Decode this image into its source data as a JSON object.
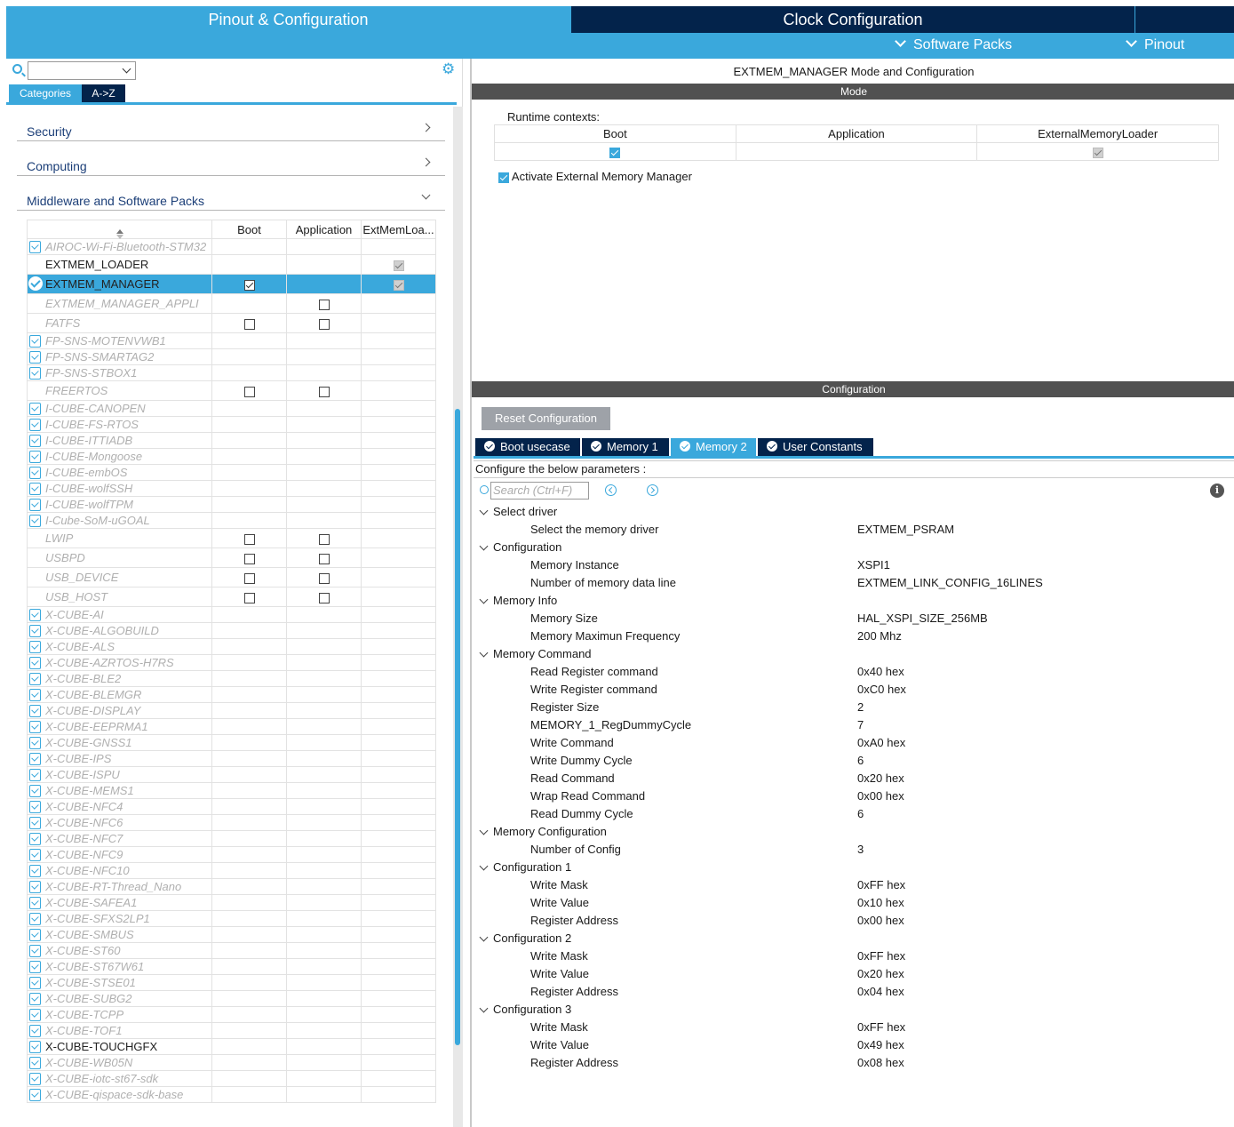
{
  "header": {
    "tab_pinout": "Pinout & Configuration",
    "tab_clock": "Clock Configuration",
    "menu_software_packs": "Software Packs",
    "menu_pinout": "Pinout"
  },
  "left": {
    "tab_categories": "Categories",
    "tab_az": "A->Z",
    "sections": [
      "Security",
      "Computing",
      "Middleware and Software Packs"
    ],
    "columns": [
      "Boot",
      "Application",
      "ExtMemLoa..."
    ],
    "rows": [
      {
        "name": "AIROC-Wi-Fi-Bluetooth-STM32",
        "icon": "download",
        "state": "disabled",
        "boot": "",
        "app": "",
        "ext": ""
      },
      {
        "name": "EXTMEM_LOADER",
        "icon": "",
        "state": "enabled",
        "boot": "",
        "app": "",
        "ext": "grey"
      },
      {
        "name": "EXTMEM_MANAGER",
        "icon": "ok",
        "state": "selected",
        "boot": "on",
        "app": "",
        "ext": "grey"
      },
      {
        "name": "EXTMEM_MANAGER_APPLI",
        "icon": "",
        "state": "disabled",
        "boot": "",
        "app": "off",
        "ext": ""
      },
      {
        "name": "FATFS",
        "icon": "",
        "state": "disabled",
        "boot": "off",
        "app": "off",
        "ext": ""
      },
      {
        "name": "FP-SNS-MOTENVWB1",
        "icon": "download",
        "state": "disabled",
        "boot": "",
        "app": "",
        "ext": ""
      },
      {
        "name": "FP-SNS-SMARTAG2",
        "icon": "download",
        "state": "disabled",
        "boot": "",
        "app": "",
        "ext": ""
      },
      {
        "name": "FP-SNS-STBOX1",
        "icon": "download",
        "state": "disabled",
        "boot": "",
        "app": "",
        "ext": ""
      },
      {
        "name": "FREERTOS",
        "icon": "",
        "state": "disabled",
        "boot": "off",
        "app": "off",
        "ext": ""
      },
      {
        "name": "I-CUBE-CANOPEN",
        "icon": "download",
        "state": "disabled",
        "boot": "",
        "app": "",
        "ext": ""
      },
      {
        "name": "I-CUBE-FS-RTOS",
        "icon": "download",
        "state": "disabled",
        "boot": "",
        "app": "",
        "ext": ""
      },
      {
        "name": "I-CUBE-ITTIADB",
        "icon": "download",
        "state": "disabled",
        "boot": "",
        "app": "",
        "ext": ""
      },
      {
        "name": "I-CUBE-Mongoose",
        "icon": "download",
        "state": "disabled",
        "boot": "",
        "app": "",
        "ext": ""
      },
      {
        "name": "I-CUBE-embOS",
        "icon": "download",
        "state": "disabled",
        "boot": "",
        "app": "",
        "ext": ""
      },
      {
        "name": "I-CUBE-wolfSSH",
        "icon": "download",
        "state": "disabled",
        "boot": "",
        "app": "",
        "ext": ""
      },
      {
        "name": "I-CUBE-wolfTPM",
        "icon": "download",
        "state": "disabled",
        "boot": "",
        "app": "",
        "ext": ""
      },
      {
        "name": "I-Cube-SoM-uGOAL",
        "icon": "download",
        "state": "disabled",
        "boot": "",
        "app": "",
        "ext": ""
      },
      {
        "name": "LWIP",
        "icon": "",
        "state": "disabled",
        "boot": "off",
        "app": "off",
        "ext": ""
      },
      {
        "name": "USBPD",
        "icon": "",
        "state": "disabled",
        "boot": "off",
        "app": "off",
        "ext": ""
      },
      {
        "name": "USB_DEVICE",
        "icon": "",
        "state": "disabled",
        "boot": "off",
        "app": "off",
        "ext": ""
      },
      {
        "name": "USB_HOST",
        "icon": "",
        "state": "disabled",
        "boot": "off",
        "app": "off",
        "ext": ""
      },
      {
        "name": "X-CUBE-AI",
        "icon": "download",
        "state": "disabled",
        "boot": "",
        "app": "",
        "ext": ""
      },
      {
        "name": "X-CUBE-ALGOBUILD",
        "icon": "download",
        "state": "disabled",
        "boot": "",
        "app": "",
        "ext": ""
      },
      {
        "name": "X-CUBE-ALS",
        "icon": "download",
        "state": "disabled",
        "boot": "",
        "app": "",
        "ext": ""
      },
      {
        "name": "X-CUBE-AZRTOS-H7RS",
        "icon": "download",
        "state": "disabled",
        "boot": "",
        "app": "",
        "ext": ""
      },
      {
        "name": "X-CUBE-BLE2",
        "icon": "download",
        "state": "disabled",
        "boot": "",
        "app": "",
        "ext": ""
      },
      {
        "name": "X-CUBE-BLEMGR",
        "icon": "download",
        "state": "disabled",
        "boot": "",
        "app": "",
        "ext": ""
      },
      {
        "name": "X-CUBE-DISPLAY",
        "icon": "download",
        "state": "disabled",
        "boot": "",
        "app": "",
        "ext": ""
      },
      {
        "name": "X-CUBE-EEPRMA1",
        "icon": "download",
        "state": "disabled",
        "boot": "",
        "app": "",
        "ext": ""
      },
      {
        "name": "X-CUBE-GNSS1",
        "icon": "download",
        "state": "disabled",
        "boot": "",
        "app": "",
        "ext": ""
      },
      {
        "name": "X-CUBE-IPS",
        "icon": "download",
        "state": "disabled",
        "boot": "",
        "app": "",
        "ext": ""
      },
      {
        "name": "X-CUBE-ISPU",
        "icon": "download",
        "state": "disabled",
        "boot": "",
        "app": "",
        "ext": ""
      },
      {
        "name": "X-CUBE-MEMS1",
        "icon": "download",
        "state": "disabled",
        "boot": "",
        "app": "",
        "ext": ""
      },
      {
        "name": "X-CUBE-NFC4",
        "icon": "download",
        "state": "disabled",
        "boot": "",
        "app": "",
        "ext": ""
      },
      {
        "name": "X-CUBE-NFC6",
        "icon": "download",
        "state": "disabled",
        "boot": "",
        "app": "",
        "ext": ""
      },
      {
        "name": "X-CUBE-NFC7",
        "icon": "download",
        "state": "disabled",
        "boot": "",
        "app": "",
        "ext": ""
      },
      {
        "name": "X-CUBE-NFC9",
        "icon": "download",
        "state": "disabled",
        "boot": "",
        "app": "",
        "ext": ""
      },
      {
        "name": "X-CUBE-NFC10",
        "icon": "download",
        "state": "disabled",
        "boot": "",
        "app": "",
        "ext": ""
      },
      {
        "name": "X-CUBE-RT-Thread_Nano",
        "icon": "download",
        "state": "disabled",
        "boot": "",
        "app": "",
        "ext": ""
      },
      {
        "name": "X-CUBE-SAFEA1",
        "icon": "download",
        "state": "disabled",
        "boot": "",
        "app": "",
        "ext": ""
      },
      {
        "name": "X-CUBE-SFXS2LP1",
        "icon": "download",
        "state": "disabled",
        "boot": "",
        "app": "",
        "ext": ""
      },
      {
        "name": "X-CUBE-SMBUS",
        "icon": "download",
        "state": "disabled",
        "boot": "",
        "app": "",
        "ext": ""
      },
      {
        "name": "X-CUBE-ST60",
        "icon": "download",
        "state": "disabled",
        "boot": "",
        "app": "",
        "ext": ""
      },
      {
        "name": "X-CUBE-ST67W61",
        "icon": "download",
        "state": "disabled",
        "boot": "",
        "app": "",
        "ext": ""
      },
      {
        "name": "X-CUBE-STSE01",
        "icon": "download",
        "state": "disabled",
        "boot": "",
        "app": "",
        "ext": ""
      },
      {
        "name": "X-CUBE-SUBG2",
        "icon": "download",
        "state": "disabled",
        "boot": "",
        "app": "",
        "ext": ""
      },
      {
        "name": "X-CUBE-TCPP",
        "icon": "download",
        "state": "disabled",
        "boot": "",
        "app": "",
        "ext": ""
      },
      {
        "name": "X-CUBE-TOF1",
        "icon": "download",
        "state": "disabled",
        "boot": "",
        "app": "",
        "ext": ""
      },
      {
        "name": "X-CUBE-TOUCHGFX",
        "icon": "download",
        "state": "enabled",
        "boot": "",
        "app": "",
        "ext": ""
      },
      {
        "name": "X-CUBE-WB05N",
        "icon": "download",
        "state": "disabled",
        "boot": "",
        "app": "",
        "ext": ""
      },
      {
        "name": "X-CUBE-iotc-st67-sdk",
        "icon": "download",
        "state": "disabled",
        "boot": "",
        "app": "",
        "ext": ""
      },
      {
        "name": "X-CUBE-qispace-sdk-base",
        "icon": "download",
        "state": "disabled",
        "boot": "",
        "app": "",
        "ext": ""
      }
    ]
  },
  "mode": {
    "title": "EXTMEM_MANAGER Mode and Configuration",
    "bar": "Mode",
    "runtime_label": "Runtime contexts:",
    "contexts": [
      "Boot",
      "Application",
      "ExternalMemoryLoader"
    ],
    "activate_label": "Activate External Memory Manager"
  },
  "config": {
    "bar": "Configuration",
    "reset_label": "Reset Configuration",
    "tabs": [
      "Boot usecase",
      "Memory 1",
      "Memory 2",
      "User Constants"
    ],
    "active_tab": "Memory 2",
    "params_label": "Configure the below parameters :",
    "search_placeholder": "Search (Ctrl+F)",
    "groups": [
      {
        "title": "Select driver",
        "items": [
          [
            "Select the memory driver",
            "EXTMEM_PSRAM"
          ]
        ]
      },
      {
        "title": "Configuration",
        "items": [
          [
            "Memory Instance",
            "XSPI1"
          ],
          [
            "Number of memory data line",
            "EXTMEM_LINK_CONFIG_16LINES"
          ]
        ]
      },
      {
        "title": "Memory Info",
        "items": [
          [
            "Memory Size",
            "HAL_XSPI_SIZE_256MB"
          ],
          [
            "Memory Maximun Frequency",
            "200 Mhz"
          ]
        ]
      },
      {
        "title": "Memory Command",
        "items": [
          [
            "Read Register command",
            "0x40 hex"
          ],
          [
            "Write Register command",
            "0xC0 hex"
          ],
          [
            "Register Size",
            "2"
          ],
          [
            "MEMORY_1_RegDummyCycle",
            "7"
          ],
          [
            "Write Command",
            "0xA0 hex"
          ],
          [
            "Write Dummy Cycle",
            "6"
          ],
          [
            "Read Command",
            "0x20 hex"
          ],
          [
            "Wrap Read Command",
            "0x00 hex"
          ],
          [
            "Read Dummy Cycle",
            "6"
          ]
        ]
      },
      {
        "title": "Memory Configuration",
        "items": [
          [
            "Number of Config",
            "3"
          ]
        ]
      },
      {
        "title": "Configuration 1",
        "items": [
          [
            "Write Mask",
            "0xFF hex"
          ],
          [
            "Write Value",
            "0x10 hex"
          ],
          [
            "Register Address",
            "0x00 hex"
          ]
        ]
      },
      {
        "title": "Configuration 2",
        "items": [
          [
            "Write Mask",
            "0xFF hex"
          ],
          [
            "Write Value",
            "0x20 hex"
          ],
          [
            "Register Address",
            "0x04 hex"
          ]
        ]
      },
      {
        "title": "Configuration 3",
        "items": [
          [
            "Write Mask",
            "0xFF hex"
          ],
          [
            "Write Value",
            "0x49 hex"
          ],
          [
            "Register Address",
            "0x08 hex"
          ]
        ]
      }
    ]
  }
}
